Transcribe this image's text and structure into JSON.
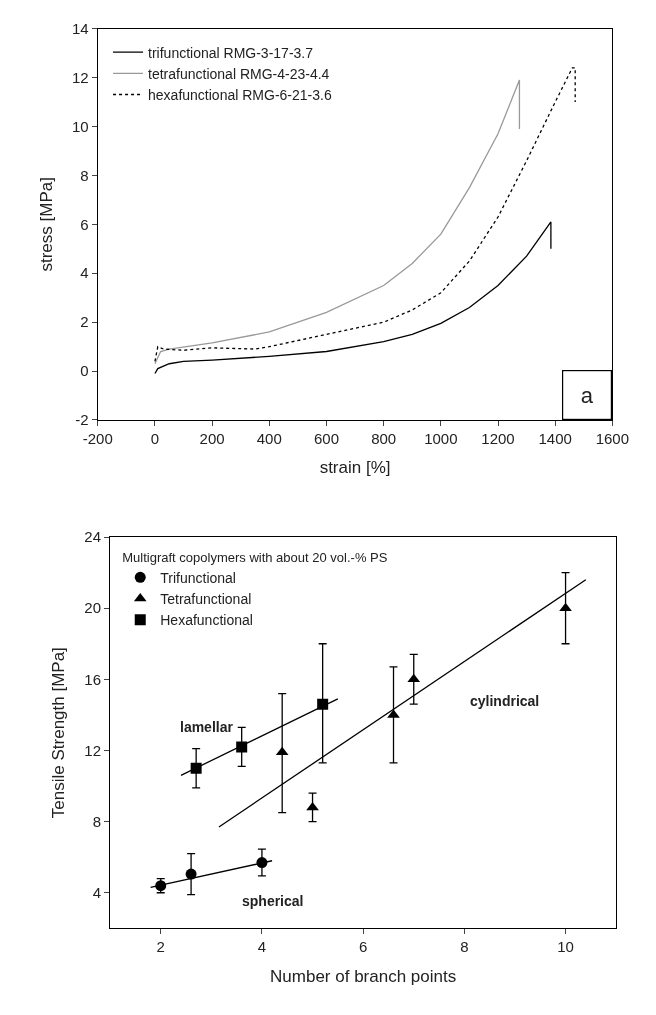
{
  "chart_data": [
    {
      "type": "line",
      "xlabel": "strain [%]",
      "ylabel": "stress [MPa]",
      "xlim": [
        -200,
        1600
      ],
      "ylim": [
        -2,
        14
      ],
      "xticks": [
        -200,
        0,
        200,
        400,
        600,
        800,
        1000,
        1200,
        1400,
        1600
      ],
      "yticks": [
        -2,
        0,
        2,
        4,
        6,
        8,
        10,
        12,
        14
      ],
      "legend": "top left",
      "marker": "none",
      "annotations": [
        "a"
      ],
      "series": [
        {
          "name": "trifunctional RMG-3-17-3.7",
          "color": "#000000",
          "line_style": "solid",
          "x": [
            0,
            10,
            50,
            100,
            200,
            400,
            600,
            800,
            900,
            1000,
            1100,
            1200,
            1300,
            1385,
            1385
          ],
          "values": [
            -0.1,
            0.1,
            0.3,
            0.4,
            0.45,
            0.6,
            0.8,
            1.2,
            1.5,
            1.95,
            2.6,
            3.5,
            4.7,
            6.1,
            5.0
          ]
        },
        {
          "name": "tetrafunctional RMG-4-23-4.4",
          "color": "#999999",
          "line_style": "solid",
          "x": [
            0,
            20,
            50,
            200,
            400,
            600,
            800,
            900,
            1000,
            1100,
            1200,
            1275,
            1275
          ],
          "values": [
            0.3,
            0.8,
            0.9,
            1.15,
            1.6,
            2.4,
            3.5,
            4.4,
            5.6,
            7.5,
            9.7,
            11.9,
            9.9
          ]
        },
        {
          "name": "hexafunctional RMG-6-21-3.6",
          "color": "#000000",
          "line_style": "dotted",
          "x": [
            0,
            10,
            30,
            100,
            200,
            350,
            400,
            600,
            800,
            900,
            1000,
            1100,
            1200,
            1300,
            1400,
            1460,
            1470,
            1470
          ],
          "values": [
            0.4,
            1.0,
            0.9,
            0.85,
            0.95,
            0.9,
            1.0,
            1.5,
            2.0,
            2.5,
            3.2,
            4.5,
            6.3,
            8.6,
            11.0,
            12.4,
            12.4,
            11.0
          ]
        }
      ]
    },
    {
      "type": "scatter",
      "xlabel": "Number of branch points",
      "ylabel": "Tensile Strength [MPa]",
      "xlim": [
        1,
        11
      ],
      "ylim": [
        2,
        24
      ],
      "xticks": [
        2,
        4,
        6,
        8,
        10
      ],
      "yticks": [
        4,
        8,
        12,
        16,
        20,
        24
      ],
      "legend": "top left",
      "legend_title": "Multigraft copolymers with about 20 vol.-% PS",
      "annotations": [
        "lamellar",
        "cylindrical",
        "spherical"
      ],
      "series": [
        {
          "name": "Trifunctional",
          "color": "#000000",
          "marker": "circle",
          "x": [
            2,
            2.6,
            4
          ],
          "values": [
            4.4,
            5.05,
            5.7
          ],
          "errors": [
            [
              4.0,
              4.8
            ],
            [
              3.9,
              6.2
            ],
            [
              4.95,
              6.45
            ]
          ]
        },
        {
          "name": "Tetrafunctional",
          "color": "#000000",
          "marker": "triangle",
          "x": [
            4.4,
            5,
            6.6,
            7,
            10
          ],
          "values": [
            11.9,
            8.8,
            14.0,
            16.0,
            20.0
          ],
          "errors": [
            [
              8.5,
              15.2
            ],
            [
              8.0,
              9.6
            ],
            [
              11.3,
              16.7
            ],
            [
              14.6,
              17.4
            ],
            [
              18,
              22
            ]
          ]
        },
        {
          "name": "Hexafunctional",
          "color": "#000000",
          "marker": "square",
          "x": [
            2.7,
            3.6,
            5.2
          ],
          "values": [
            11.0,
            12.2,
            14.6
          ],
          "errors": [
            [
              9.9,
              12.1
            ],
            [
              11.1,
              13.3
            ],
            [
              11.3,
              18.0
            ]
          ]
        },
        {
          "type": "line",
          "color": "#000000",
          "x": [
            1.8,
            4.2
          ],
          "values": [
            4.3,
            5.8
          ]
        },
        {
          "type": "line",
          "color": "#000000",
          "x": [
            2.4,
            5.5
          ],
          "values": [
            10.6,
            14.9
          ]
        },
        {
          "type": "line",
          "color": "#000000",
          "x": [
            3.15,
            10.4
          ],
          "values": [
            7.7,
            21.6
          ]
        }
      ]
    }
  ]
}
